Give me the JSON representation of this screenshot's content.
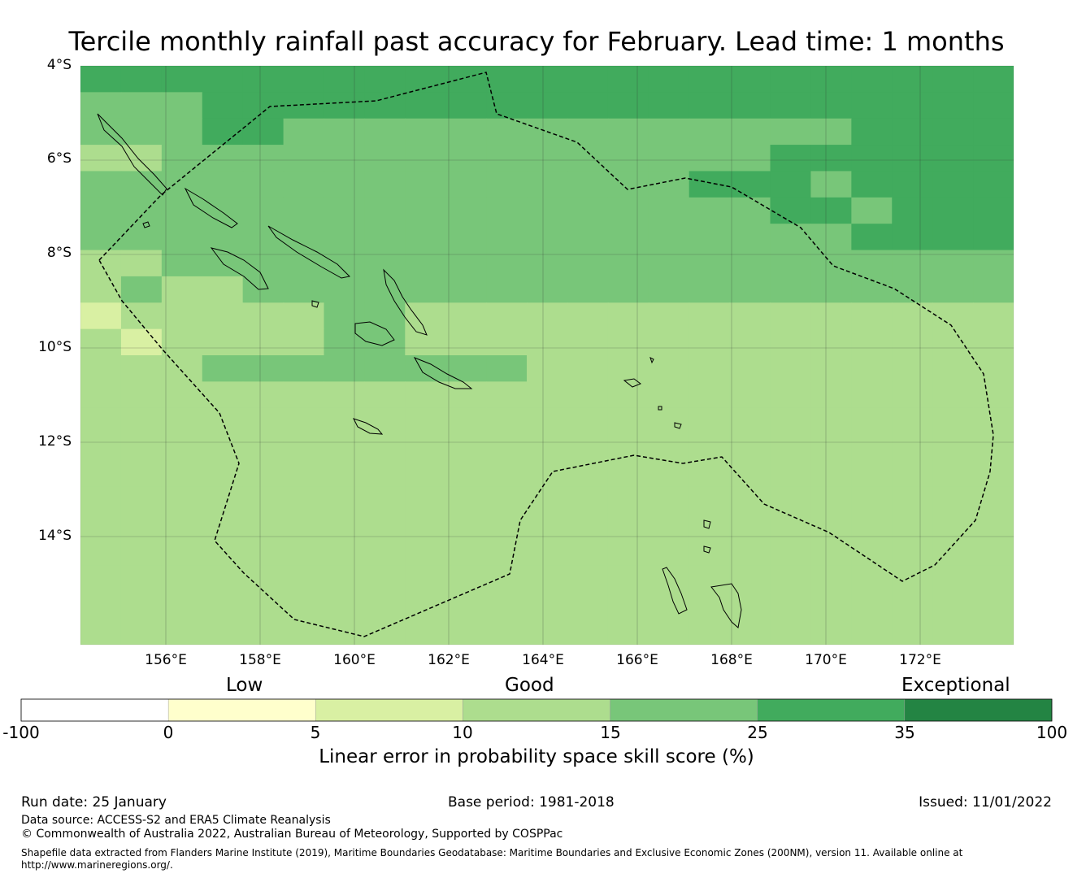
{
  "title": "Tercile monthly rainfall past accuracy for February. Lead time: 1 months",
  "map": {
    "lat_labels": [
      "4°S",
      "6°S",
      "8°S",
      "10°S",
      "12°S",
      "14°S"
    ],
    "lon_labels": [
      "156°E",
      "158°E",
      "160°E",
      "162°E",
      "164°E",
      "166°E",
      "168°E",
      "170°E",
      "172°E"
    ],
    "grid_levels": [
      "55555555555555555555555",
      "44455555555555555555555",
      "44455444444444444445555",
      "33444444444444444555555",
      "44444444444444455545555",
      "44444444444444444554555",
      "44444444444444444445555",
      "33444444444444444444444",
      "34334444444444444444444",
      "23333344333333333333333",
      "32333344333333333333333",
      "33344444444333333333333",
      "33333333333333333333333",
      "33333333333333333333333",
      "33333333333333333333333",
      "33333333333333333333333",
      "33333333333333333333333",
      "33333333333333333333333",
      "33333333333333333333333",
      "33333333333333333333333",
      "33333333333333333333333",
      "33333333333333333333333"
    ]
  },
  "colorbar": {
    "categories": [
      "Low",
      "Good",
      "Exceptional"
    ],
    "ticks": [
      "-100",
      "0",
      "5",
      "10",
      "15",
      "25",
      "35",
      "100"
    ],
    "colors": [
      "#ffffff",
      "#ffffcc",
      "#d9f0a3",
      "#addd8e",
      "#78c679",
      "#41ab5d",
      "#238443"
    ],
    "label": "Linear error in probability space skill score (%)"
  },
  "footer": {
    "run_date": "Run date: 25 January",
    "base_period": "Base period: 1981-2018",
    "issued": "Issued: 11/01/2022",
    "data_source": "Data source: ACCESS-S2 and ERA5 Climate Reanalysis",
    "copyright": "© Commonwealth of Australia 2022, Australian Bureau of Meteorology, Supported by COSPPac",
    "shapefile_line1": "Shapefile data extracted from Flanders Marine Institute (2019), Maritime Boundaries Geodatabase: Maritime Boundaries and Exclusive Economic Zones (200NM), version 11. Available online at",
    "shapefile_line2": "http://www.marineregions.org/."
  }
}
